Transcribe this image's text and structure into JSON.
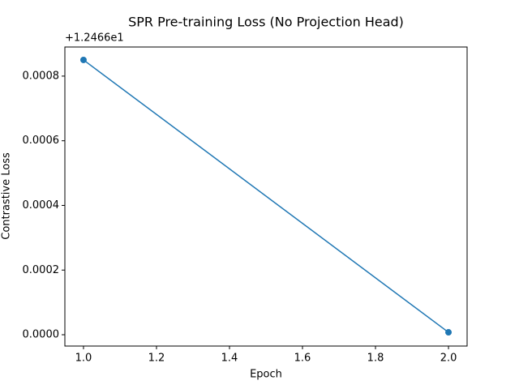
{
  "chart_data": {
    "type": "line",
    "title": "SPR Pre-training Loss (No Projection Head)",
    "x_label": "Epoch",
    "y_label": "Contrastive Loss",
    "y_offset_text": "+1.2466e1",
    "x": [
      1,
      2
    ],
    "series": [
      {
        "name": "Contrastive Loss",
        "color": "#1f77b4",
        "values": [
          0.00085,
          7.5e-06
        ]
      }
    ],
    "xlim": [
      0.949,
      2.051
    ],
    "xticks": [
      {
        "value": 1,
        "label": "1.0"
      },
      1.2,
      1.4,
      1.6,
      1.8,
      {
        "value": 2,
        "label": "2.0"
      }
    ],
    "ylim": [
      -3.5e-05,
      0.00089
    ],
    "yticks": [
      {
        "value": 0,
        "label": "0.0000"
      },
      0.0002,
      0.0004,
      0.0006,
      0.0008
    ],
    "grid": false
  }
}
